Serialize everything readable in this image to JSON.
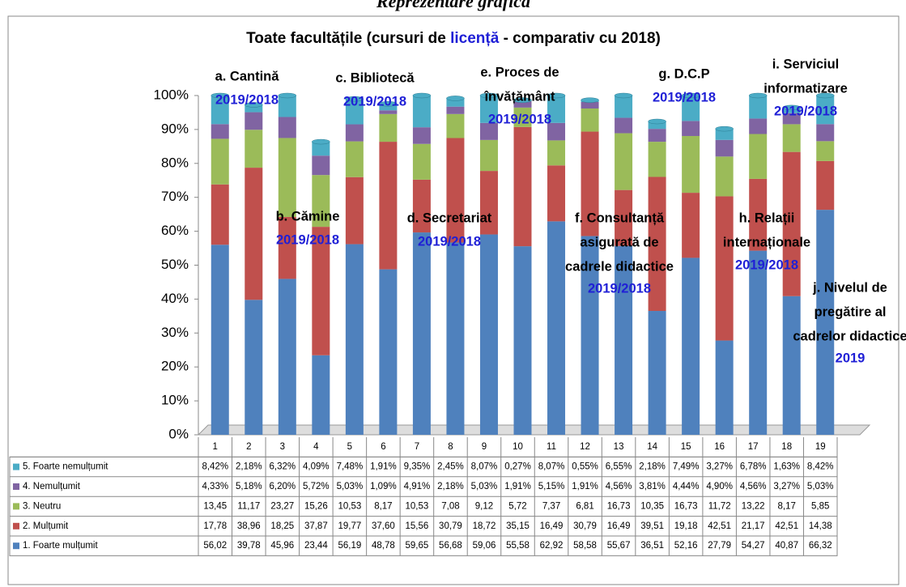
{
  "heading": "Reprezentare grafică",
  "chart_data": {
    "type": "stacked_bar",
    "title_parts": [
      "Toate facultățile (cursuri de ",
      "licență",
      " - comparativ cu 2018)"
    ],
    "categories": [
      "1",
      "2",
      "3",
      "4",
      "5",
      "6",
      "7",
      "8",
      "9",
      "10",
      "11",
      "12",
      "13",
      "14",
      "15",
      "16",
      "17",
      "18",
      "19"
    ],
    "ylim": [
      0,
      100
    ],
    "yticks": [
      {
        "value": 0,
        "label": "0%"
      },
      {
        "value": 10,
        "label": "10%"
      },
      {
        "value": 20,
        "label": "20%"
      },
      {
        "value": 30,
        "label": "30%"
      },
      {
        "value": 40,
        "label": "40%"
      },
      {
        "value": 50,
        "label": "50%"
      },
      {
        "value": 60,
        "label": "60%"
      },
      {
        "value": 70,
        "label": "70%"
      },
      {
        "value": 80,
        "label": "80%"
      },
      {
        "value": 90,
        "label": "90%"
      },
      {
        "value": 100,
        "label": "100%"
      }
    ],
    "series": [
      {
        "name": "1. Foarte mulțumit",
        "color": "#4f81bd",
        "values": [
          56.02,
          39.78,
          45.96,
          23.44,
          56.19,
          48.78,
          59.65,
          56.68,
          59.06,
          55.58,
          62.92,
          58.58,
          55.67,
          36.51,
          52.16,
          27.79,
          54.27,
          40.87,
          66.32
        ],
        "value_labels": [
          "56,02",
          "39,78",
          "45,96",
          "23,44",
          "56,19",
          "48,78",
          "59,65",
          "56,68",
          "59,06",
          "55,58",
          "62,92",
          "58,58",
          "55,67",
          "36,51",
          "52,16",
          "27,79",
          "54,27",
          "40,87",
          "66,32"
        ]
      },
      {
        "name": "2. Mulțumit",
        "color": "#c0504d",
        "values": [
          17.78,
          38.96,
          18.25,
          37.87,
          19.77,
          37.6,
          15.56,
          30.79,
          18.72,
          35.15,
          16.49,
          30.79,
          16.49,
          39.51,
          19.18,
          42.51,
          21.17,
          42.51,
          14.38
        ],
        "value_labels": [
          "17,78",
          "38,96",
          "18,25",
          "37,87",
          "19,77",
          "37,60",
          "15,56",
          "30,79",
          "18,72",
          "35,15",
          "16,49",
          "30,79",
          "16,49",
          "39,51",
          "19,18",
          "42,51",
          "21,17",
          "42,51",
          "14,38"
        ]
      },
      {
        "name": "3. Neutru",
        "color": "#9bbb59",
        "values": [
          13.45,
          11.17,
          23.27,
          15.26,
          10.53,
          8.17,
          10.53,
          7.08,
          9.12,
          5.72,
          7.37,
          6.81,
          16.73,
          10.35,
          16.73,
          11.72,
          13.22,
          8.17,
          5.85
        ],
        "value_labels": [
          "13,45",
          "11,17",
          "23,27",
          "15,26",
          "10,53",
          "8,17",
          "10,53",
          "7,08",
          "9,12",
          "5,72",
          "7,37",
          "6,81",
          "16,73",
          "10,35",
          "16,73",
          "11,72",
          "13,22",
          "8,17",
          "5,85"
        ]
      },
      {
        "name": "4. Nemulțumit",
        "color": "#8064a2",
        "values": [
          4.33,
          5.18,
          6.2,
          5.72,
          5.03,
          1.09,
          4.91,
          2.18,
          5.03,
          1.91,
          5.15,
          1.91,
          4.56,
          3.81,
          4.44,
          4.9,
          4.56,
          3.27,
          5.03
        ],
        "value_labels": [
          "4,33%",
          "5,18%",
          "6,20%",
          "5,72%",
          "5,03%",
          "1,09%",
          "4,91%",
          "2,18%",
          "5,03%",
          "1,91%",
          "5,15%",
          "1,91%",
          "4,56%",
          "3,81%",
          "4,44%",
          "4,90%",
          "4,56%",
          "3,27%",
          "5,03%"
        ]
      },
      {
        "name": "5. Foarte nemulțumit",
        "color": "#4bacc6",
        "values": [
          8.42,
          2.18,
          6.32,
          4.09,
          7.48,
          1.91,
          9.35,
          2.45,
          8.07,
          0.27,
          8.07,
          0.55,
          6.55,
          2.18,
          7.49,
          3.27,
          6.78,
          1.63,
          8.42
        ],
        "value_labels": [
          "8,42%",
          "2,18%",
          "6,32%",
          "4,09%",
          "7,48%",
          "1,91%",
          "9,35%",
          "2,45%",
          "8,07%",
          "0,27%",
          "8,07%",
          "0,55%",
          "6,55%",
          "2,18%",
          "7,49%",
          "3,27%",
          "6,78%",
          "1,63%",
          "8,42%"
        ]
      }
    ],
    "annotations": [
      {
        "lines": [
          "a. Cantină"
        ],
        "year": "2019/2018"
      },
      {
        "lines": [
          "b. Cămine"
        ],
        "year": "2019/2018"
      },
      {
        "lines": [
          "c. Bibliotecă"
        ],
        "year": "2019/2018"
      },
      {
        "lines": [
          "d. Secretariat"
        ],
        "year": "2019/2018"
      },
      {
        "lines": [
          "e. Proces de",
          "învățământ"
        ],
        "year": "2019/2018"
      },
      {
        "lines": [
          "f. Consultanță",
          "asigurată de",
          "cadrele didactice"
        ],
        "year": "2019/2018"
      },
      {
        "lines": [
          "g. D.C.P"
        ],
        "year": "2019/2018"
      },
      {
        "lines": [
          "h. Relații",
          "internaționale"
        ],
        "year": "2019/2018"
      },
      {
        "lines": [
          "i. Serviciul",
          "informatizare"
        ],
        "year": "2019/2018"
      },
      {
        "lines": [
          "j. Nivelul de",
          "pregătire al",
          "cadrelor didactice"
        ],
        "year": "2019"
      }
    ]
  }
}
